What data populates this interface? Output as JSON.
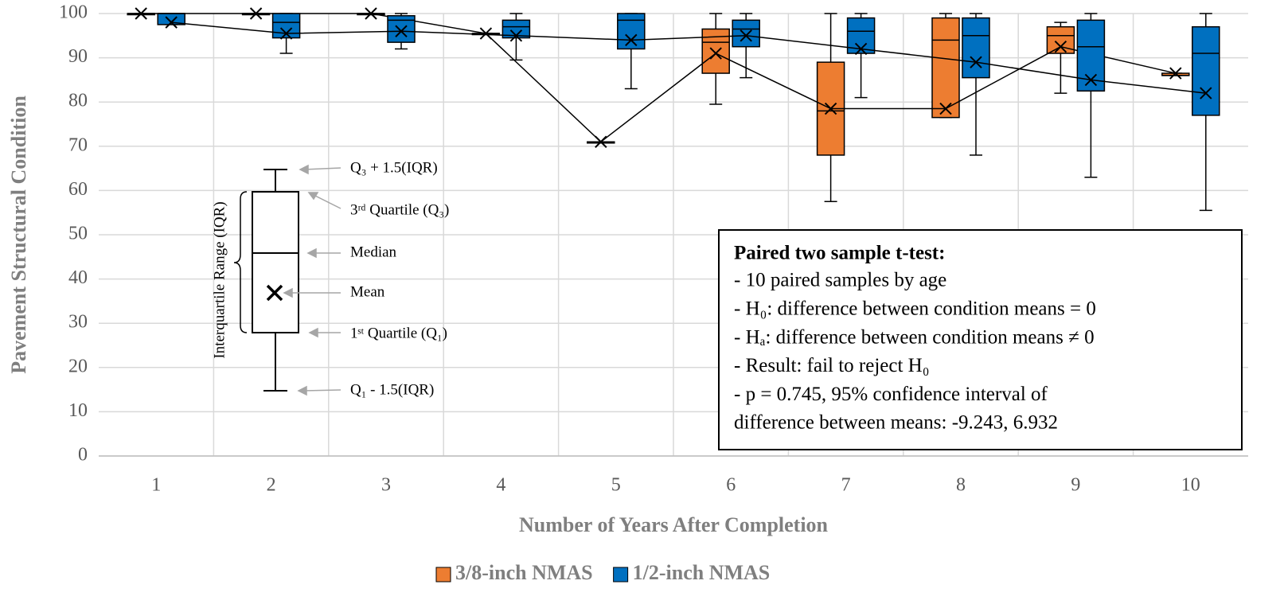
{
  "chart_data": {
    "type": "box",
    "xlabel": "Number of Years After Completion",
    "ylabel": "Pavement Structural Condition",
    "categories": [
      "1",
      "2",
      "3",
      "4",
      "5",
      "6",
      "7",
      "8",
      "9",
      "10"
    ],
    "ylim": [
      0,
      100
    ],
    "yticks": [
      0,
      10,
      20,
      30,
      40,
      50,
      60,
      70,
      80,
      90,
      100
    ],
    "grid": true,
    "legend": "bottom",
    "series": [
      {
        "name": "3/8-inch NMAS",
        "color": "#ed7d31",
        "min": [
          100,
          100,
          100,
          95.5,
          71,
          79.5,
          57.5,
          76.5,
          82,
          86
        ],
        "q1": [
          100,
          100,
          100,
          95.5,
          71,
          86.5,
          68,
          76.5,
          91,
          86
        ],
        "median": [
          100,
          100,
          100,
          95.5,
          71,
          93.5,
          78,
          94,
          95,
          86
        ],
        "q3": [
          100,
          100,
          100,
          95.5,
          71,
          96.5,
          89,
          99,
          97,
          86.5
        ],
        "max": [
          100,
          100,
          100,
          95.5,
          71,
          100,
          100,
          100,
          98,
          86.5
        ],
        "mean": [
          100,
          100,
          100,
          95.5,
          71,
          91,
          78.5,
          78.5,
          92.5,
          86.5
        ]
      },
      {
        "name": "1/2-inch NMAS",
        "color": "#0070c0",
        "min": [
          97.5,
          91,
          92,
          89.5,
          83,
          85.5,
          81,
          68,
          63,
          55.5
        ],
        "q1": [
          97.5,
          94.5,
          93.5,
          94.5,
          92,
          92.5,
          91,
          85.5,
          82.5,
          77
        ],
        "median": [
          100,
          98,
          98.5,
          97,
          98.5,
          96.5,
          96,
          95,
          92.5,
          91
        ],
        "q3": [
          100,
          100,
          99.5,
          98.5,
          100,
          98.5,
          99,
          99,
          98.5,
          97
        ],
        "max": [
          100,
          100,
          100,
          100,
          100,
          100,
          100,
          100,
          100,
          100
        ],
        "mean": [
          98,
          95.5,
          96,
          95,
          94,
          95,
          92,
          89,
          85,
          82
        ]
      }
    ],
    "key": {
      "iqr": "Interquartile Range (IQR)",
      "upper": "Q₃ + 1.5(IQR)",
      "q3": "3ʳᵈ Quartile (Q₃)",
      "median": "Median",
      "mean": "Mean",
      "q1": "1ˢᵗ Quartile (Q₁)",
      "lower": "Q₁ - 1.5(IQR)"
    },
    "text_box": {
      "title": "Paired two sample t-test:",
      "lines": [
        "- 10 paired samples by age",
        "- H₀: difference between condition  means = 0",
        "- Hₐ: difference between condition means ≠ 0",
        "- Result: fail to reject H₀",
        "- p = 0.745, 95% confidence interval  of",
        "difference between means: -9.243,  6.932"
      ]
    }
  }
}
